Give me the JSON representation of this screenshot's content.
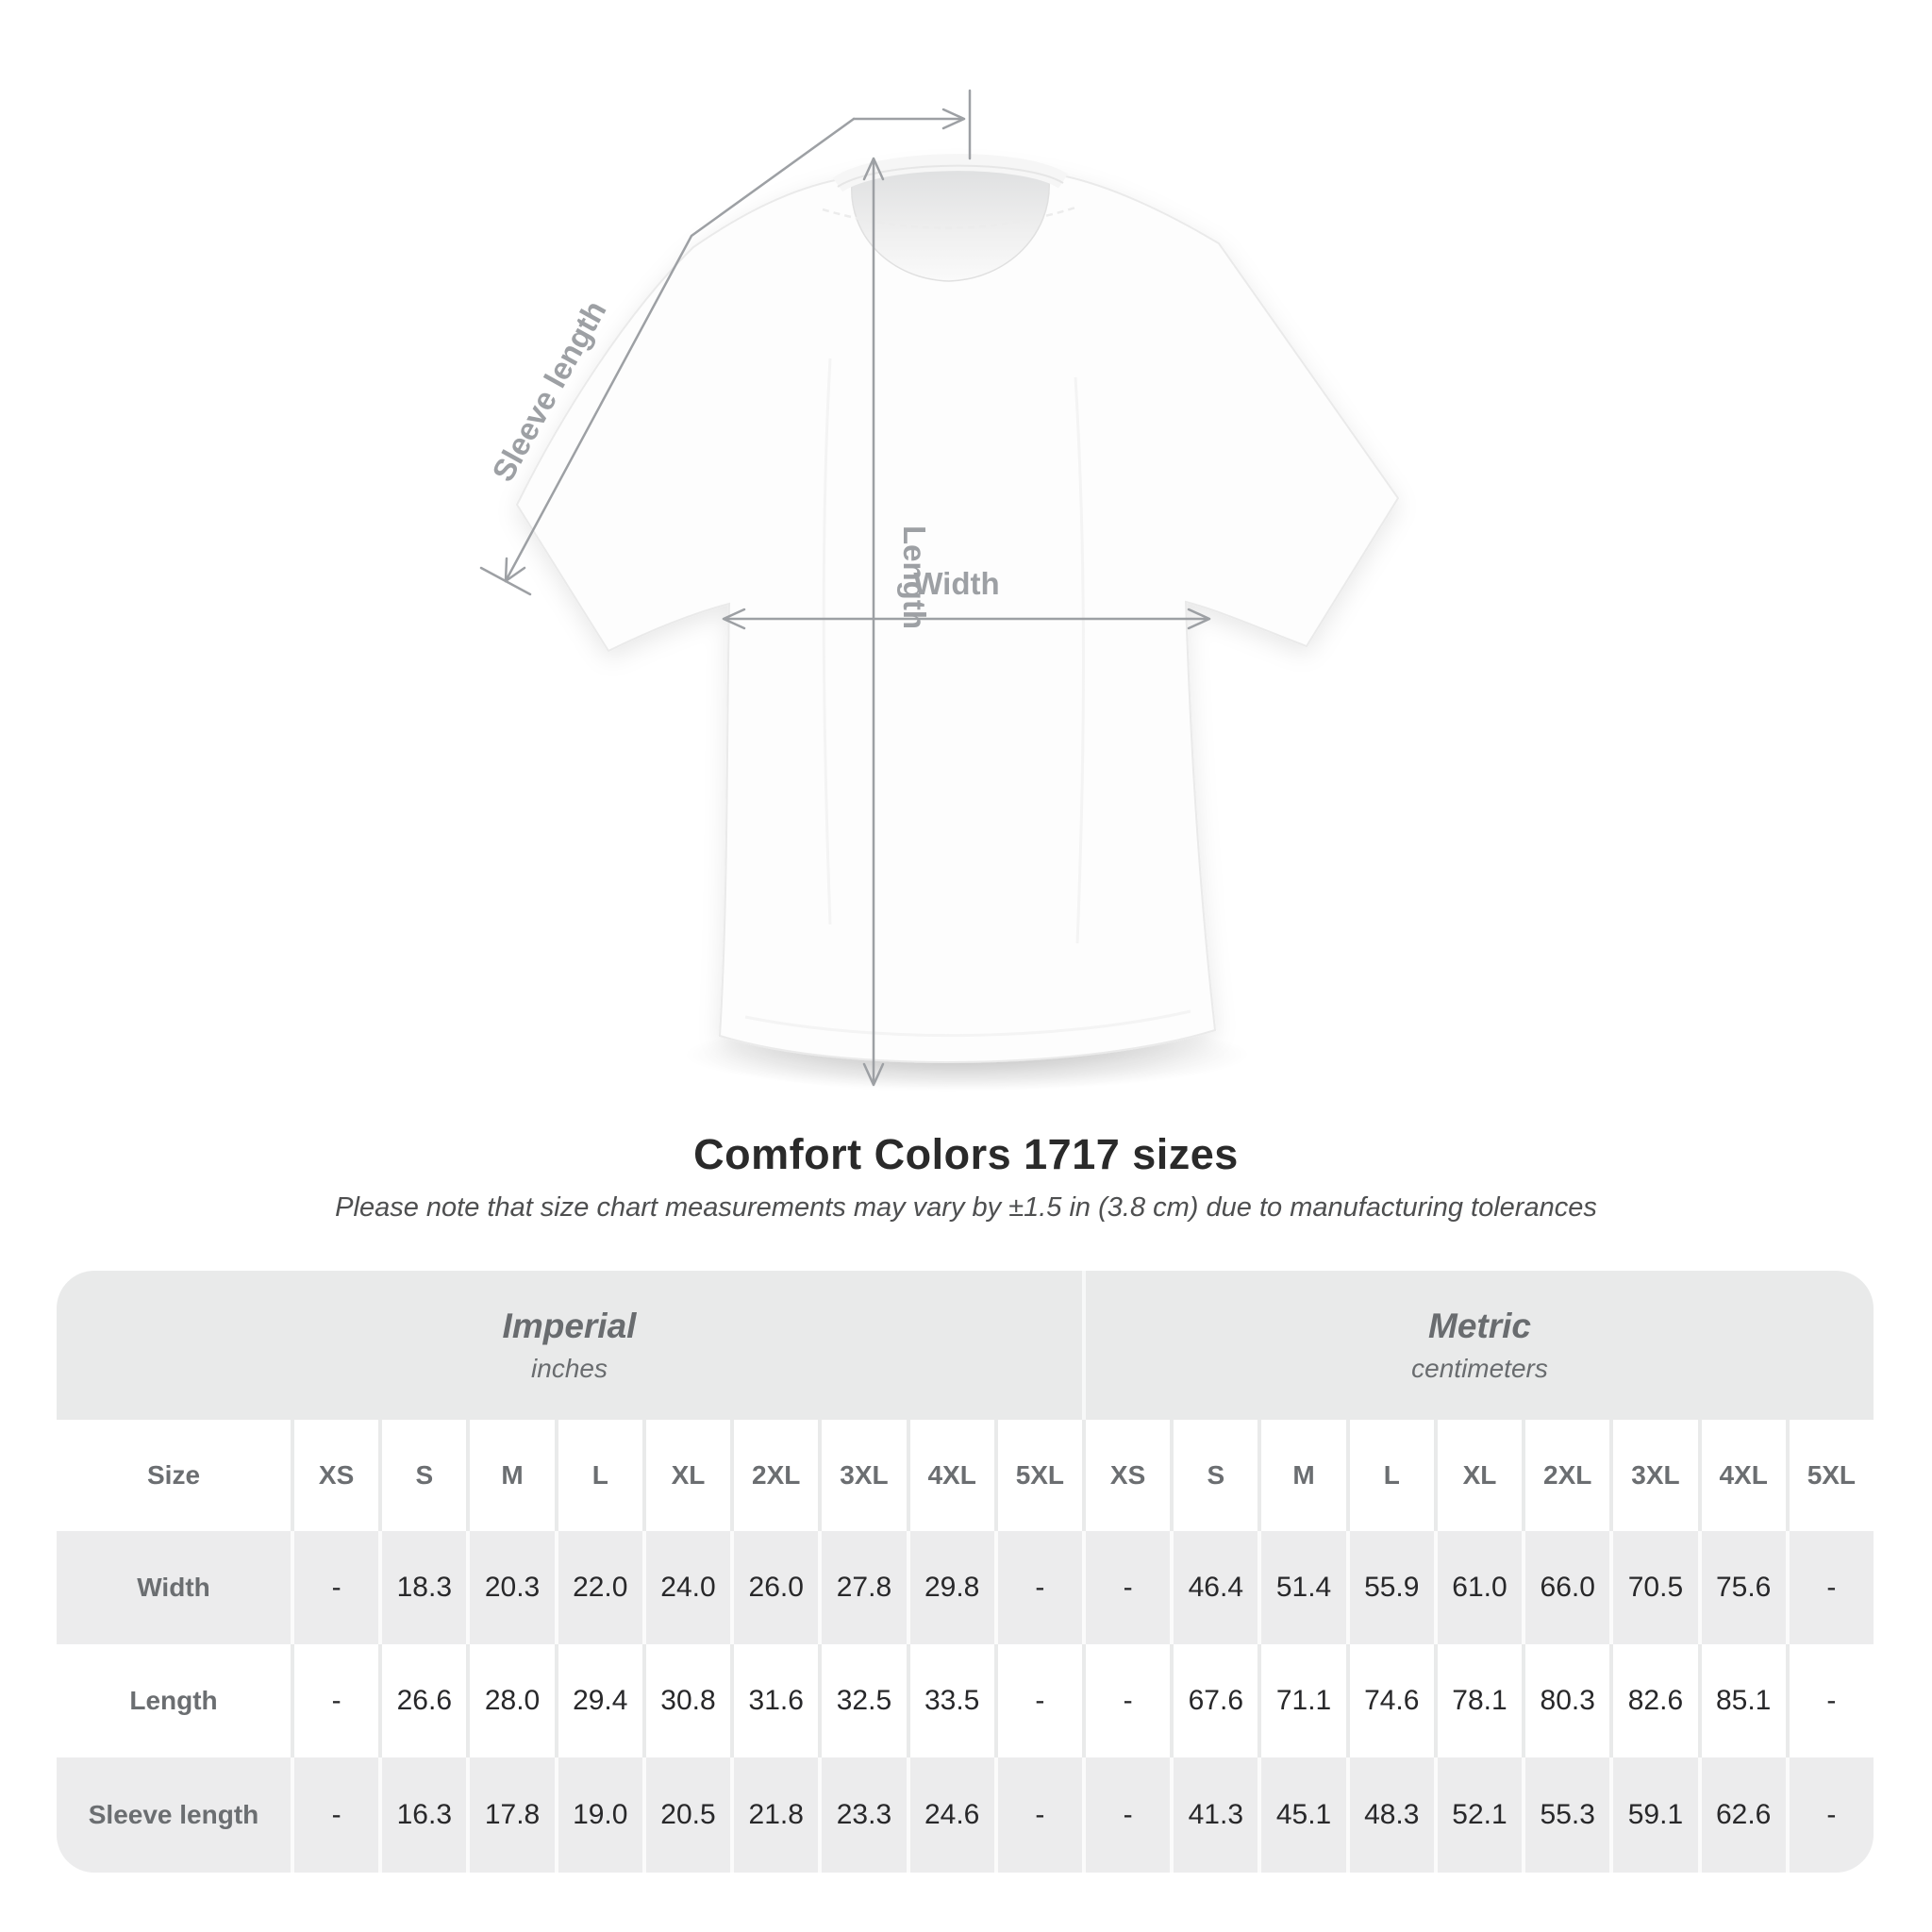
{
  "page": {
    "background": "#ffffff"
  },
  "diagram": {
    "labels": {
      "sleeve_length": "Sleeve length",
      "length": "Length",
      "width": "Width"
    }
  },
  "heading": {
    "title": "Comfort Colors 1717 sizes",
    "subtitle": "Please note that size chart measurements may vary by ±1.5 in (3.8 cm) due to manufacturing tolerances"
  },
  "table": {
    "corner_label": "Size",
    "sections": [
      {
        "name": "Imperial",
        "unit": "inches"
      },
      {
        "name": "Metric",
        "unit": "centimeters"
      }
    ],
    "sizes": [
      "XS",
      "S",
      "M",
      "L",
      "XL",
      "2XL",
      "3XL",
      "4XL",
      "5XL"
    ],
    "rows": [
      {
        "label": "Width",
        "imperial": [
          "-",
          "18.3",
          "20.3",
          "22.0",
          "24.0",
          "26.0",
          "27.8",
          "29.8",
          "-"
        ],
        "metric": [
          "-",
          "46.4",
          "51.4",
          "55.9",
          "61.0",
          "66.0",
          "70.5",
          "75.6",
          "-"
        ]
      },
      {
        "label": "Length",
        "imperial": [
          "-",
          "26.6",
          "28.0",
          "29.4",
          "30.8",
          "31.6",
          "32.5",
          "33.5",
          "-"
        ],
        "metric": [
          "-",
          "67.6",
          "71.1",
          "74.6",
          "78.1",
          "80.3",
          "82.6",
          "85.1",
          "-"
        ]
      },
      {
        "label": "Sleeve length",
        "imperial": [
          "-",
          "16.3",
          "17.8",
          "19.0",
          "20.5",
          "21.8",
          "23.3",
          "24.6",
          "-"
        ],
        "metric": [
          "-",
          "41.3",
          "45.1",
          "48.3",
          "52.1",
          "55.3",
          "59.1",
          "62.6",
          "-"
        ]
      }
    ]
  },
  "chart_data": {
    "type": "table",
    "title": "Comfort Colors 1717 sizes",
    "columns": [
      "XS",
      "S",
      "M",
      "L",
      "XL",
      "2XL",
      "3XL",
      "4XL",
      "5XL"
    ],
    "imperial_inches": {
      "Width": [
        null,
        18.3,
        20.3,
        22.0,
        24.0,
        26.0,
        27.8,
        29.8,
        null
      ],
      "Length": [
        null,
        26.6,
        28.0,
        29.4,
        30.8,
        31.6,
        32.5,
        33.5,
        null
      ],
      "Sleeve length": [
        null,
        16.3,
        17.8,
        19.0,
        20.5,
        21.8,
        23.3,
        24.6,
        null
      ]
    },
    "metric_centimeters": {
      "Width": [
        null,
        46.4,
        51.4,
        55.9,
        61.0,
        66.0,
        70.5,
        75.6,
        null
      ],
      "Length": [
        null,
        67.6,
        71.1,
        74.6,
        78.1,
        80.3,
        82.6,
        85.1,
        null
      ],
      "Sleeve length": [
        null,
        41.3,
        45.1,
        48.3,
        52.1,
        55.3,
        59.1,
        62.6,
        null
      ]
    }
  },
  "colors": {
    "band_gray": "#e9eaea",
    "row_gray": "#ececed",
    "table_header_text": "#6b6e71",
    "value_text": "#28282a",
    "annotation_gray": "#9da0a4",
    "title_text": "#2a2a2a",
    "subtitle_text": "#4e4f50"
  }
}
